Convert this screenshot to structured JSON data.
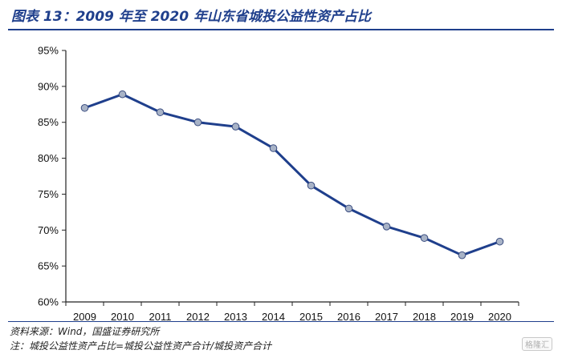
{
  "header": {
    "title": "图表 13：2009 年至 2020 年山东省城投公益性资产占比"
  },
  "footer": {
    "source": "资料来源：Wind，国盛证券研究所",
    "note": "注：城投公益性资产占比=城投公益性资产合计/城投资产合计",
    "watermark": "格隆汇"
  },
  "chart_data": {
    "type": "line",
    "title": "",
    "xlabel": "",
    "ylabel": "",
    "categories": [
      "2009",
      "2010",
      "2011",
      "2012",
      "2013",
      "2014",
      "2015",
      "2016",
      "2017",
      "2018",
      "2019",
      "2020"
    ],
    "values": [
      87.0,
      88.9,
      86.4,
      85.0,
      84.4,
      81.4,
      76.2,
      73.0,
      70.5,
      68.9,
      66.5,
      68.4
    ],
    "ylim": [
      60,
      95
    ],
    "yticks": [
      "60%",
      "65%",
      "70%",
      "75%",
      "80%",
      "85%",
      "90%",
      "95%"
    ],
    "grid": false,
    "line_color": "#1f3f8c",
    "marker_color": "#a8b3c7"
  }
}
